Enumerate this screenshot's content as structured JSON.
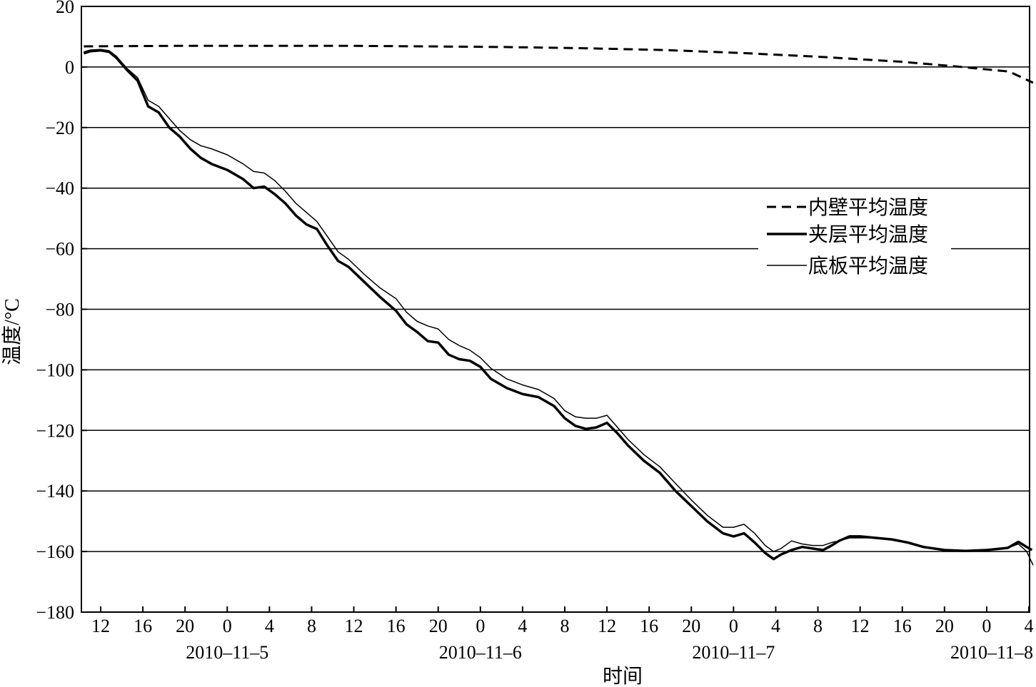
{
  "chart_data": {
    "type": "line",
    "title": "",
    "xlabel": "时间",
    "ylabel": "温度/°C",
    "ylim": [
      -180,
      20
    ],
    "yticks": [
      "20",
      "0",
      "−20",
      "−40",
      "−60",
      "−80",
      "−100",
      "−120",
      "−140",
      "−160",
      "−180"
    ],
    "ytick_values": [
      20,
      0,
      -20,
      -40,
      -60,
      -80,
      -100,
      -120,
      -140,
      -160,
      -180
    ],
    "xlim_hours": [
      10.4,
      81.8
    ],
    "x_unit": "hours from 2010-11-5 00:00",
    "xticks": [
      {
        "h": 12,
        "label": "12"
      },
      {
        "h": 16,
        "label": "16"
      },
      {
        "h": 20,
        "label": "20"
      },
      {
        "h": 24,
        "label": "0"
      },
      {
        "h": 28,
        "label": "4"
      },
      {
        "h": 32,
        "label": "8"
      },
      {
        "h": 36,
        "label": "12"
      },
      {
        "h": 40,
        "label": "16"
      },
      {
        "h": 44,
        "label": "20"
      },
      {
        "h": 48,
        "label": "0"
      },
      {
        "h": 52,
        "label": "4"
      },
      {
        "h": 56,
        "label": "8"
      },
      {
        "h": 60,
        "label": "12"
      },
      {
        "h": 64,
        "label": "16"
      },
      {
        "h": 68,
        "label": "20"
      },
      {
        "h": 72,
        "label": "0"
      },
      {
        "h": 76,
        "label": "4"
      },
      {
        "h": 80,
        "label": "8"
      }
    ],
    "date_labels": [
      {
        "h": 24,
        "label": "2010–11–5"
      },
      {
        "h": 48,
        "label": "2010–11–6"
      },
      {
        "h": 72,
        "label": "2010–11–7"
      },
      {
        "h": 80.5,
        "label": "2010–11–8"
      }
    ],
    "grid": "horizontal",
    "legend_position": "center-right",
    "colors": {
      "line": "#000000",
      "grid": "#000000",
      "background": "#ffffff"
    },
    "series": [
      {
        "name": "内壁平均温度",
        "style": "dashed",
        "width": 3,
        "points": [
          [
            10.4,
            6.8
          ],
          [
            14,
            6.9
          ],
          [
            18,
            7.0
          ],
          [
            24,
            7.0
          ],
          [
            30,
            7.0
          ],
          [
            36,
            6.8
          ],
          [
            42,
            6.6
          ],
          [
            48,
            6.2
          ],
          [
            54,
            5.6
          ],
          [
            60,
            4.6
          ],
          [
            66,
            3.3
          ],
          [
            72,
            1.7
          ],
          [
            76,
            0.2
          ],
          [
            80,
            -1.5
          ],
          [
            81.8,
            -5.2
          ]
        ]
      },
      {
        "name": "夹层平均温度",
        "style": "solid",
        "width": 3.5,
        "points": [
          [
            10.4,
            4.5
          ],
          [
            11.0,
            5.2
          ],
          [
            12.0,
            5.5
          ],
          [
            12.8,
            5.0
          ],
          [
            13.5,
            3.0
          ],
          [
            14.5,
            -1.0
          ],
          [
            15.5,
            -4.5
          ],
          [
            16.5,
            -13.0
          ],
          [
            17.5,
            -15.0
          ],
          [
            18.5,
            -20.0
          ],
          [
            19.5,
            -23.0
          ],
          [
            20.5,
            -27.0
          ],
          [
            21.5,
            -30.0
          ],
          [
            22.5,
            -32.0
          ],
          [
            24.0,
            -34.0
          ],
          [
            25.5,
            -37.0
          ],
          [
            26.5,
            -40.0
          ],
          [
            27.5,
            -39.5
          ],
          [
            28.5,
            -42.0
          ],
          [
            29.5,
            -45.0
          ],
          [
            30.5,
            -49.0
          ],
          [
            31.5,
            -52.0
          ],
          [
            32.5,
            -53.5
          ],
          [
            33.5,
            -59.0
          ],
          [
            34.5,
            -64.0
          ],
          [
            35.5,
            -66.0
          ],
          [
            37.0,
            -71.0
          ],
          [
            38.5,
            -76.0
          ],
          [
            40.0,
            -80.5
          ],
          [
            41.0,
            -85.0
          ],
          [
            42.0,
            -87.5
          ],
          [
            43.0,
            -90.5
          ],
          [
            44.0,
            -91.0
          ],
          [
            45.0,
            -95.0
          ],
          [
            46.0,
            -96.5
          ],
          [
            47.0,
            -97.0
          ],
          [
            48.0,
            -99.0
          ],
          [
            49.0,
            -103.0
          ],
          [
            50.5,
            -106.0
          ],
          [
            52.0,
            -108.0
          ],
          [
            53.5,
            -109.0
          ],
          [
            55.0,
            -112.0
          ],
          [
            56.0,
            -116.0
          ],
          [
            57.0,
            -118.5
          ],
          [
            58.0,
            -119.5
          ],
          [
            59.0,
            -119.0
          ],
          [
            60.0,
            -117.5
          ],
          [
            61.0,
            -121.0
          ],
          [
            62.0,
            -125.0
          ],
          [
            63.5,
            -130.0
          ],
          [
            65.0,
            -134.0
          ],
          [
            66.5,
            -140.0
          ],
          [
            68.0,
            -145.0
          ],
          [
            69.5,
            -150.0
          ],
          [
            71.0,
            -154.0
          ],
          [
            72.0,
            -155.0
          ],
          [
            73.0,
            -154.0
          ],
          [
            74.0,
            -157.0
          ],
          [
            75.0,
            -160.5
          ],
          [
            75.8,
            -162.5
          ],
          [
            76.5,
            -161.0
          ],
          [
            77.5,
            -159.5
          ],
          [
            78.5,
            -158.5
          ],
          [
            79.5,
            -159.0
          ],
          [
            80.5,
            -159.5
          ],
          [
            81.3,
            -158.0
          ],
          [
            82.0,
            -156.5
          ],
          [
            83.0,
            -155.0
          ],
          [
            84.0,
            -155.0
          ],
          [
            85.5,
            -155.5
          ],
          [
            87.0,
            -156.0
          ],
          [
            88.5,
            -157.0
          ],
          [
            90.0,
            -158.5
          ],
          [
            92.0,
            -159.5
          ],
          [
            94.0,
            -159.8
          ],
          [
            96.0,
            -159.5
          ],
          [
            98.0,
            -158.8
          ],
          [
            99.0,
            -156.8
          ],
          [
            99.8,
            -158.5
          ],
          [
            100.3,
            -159.5
          ]
        ]
      },
      {
        "name": "底板平均温度",
        "style": "solid",
        "width": 1.5,
        "points": [
          [
            10.4,
            5.0
          ],
          [
            11.0,
            5.6
          ],
          [
            12.0,
            5.8
          ],
          [
            12.8,
            5.4
          ],
          [
            13.5,
            3.5
          ],
          [
            14.5,
            -0.5
          ],
          [
            15.5,
            -3.5
          ],
          [
            16.5,
            -11.0
          ],
          [
            17.5,
            -13.0
          ],
          [
            18.5,
            -17.0
          ],
          [
            19.5,
            -21.0
          ],
          [
            20.5,
            -24.0
          ],
          [
            21.5,
            -26.0
          ],
          [
            22.5,
            -27.0
          ],
          [
            24.0,
            -29.0
          ],
          [
            25.5,
            -32.0
          ],
          [
            26.5,
            -34.5
          ],
          [
            27.5,
            -35.0
          ],
          [
            28.5,
            -37.5
          ],
          [
            29.5,
            -41.0
          ],
          [
            30.5,
            -45.0
          ],
          [
            31.5,
            -48.0
          ],
          [
            32.5,
            -51.0
          ],
          [
            33.5,
            -56.0
          ],
          [
            34.5,
            -61.0
          ],
          [
            35.5,
            -63.5
          ],
          [
            37.0,
            -68.5
          ],
          [
            38.5,
            -73.0
          ],
          [
            40.0,
            -76.5
          ],
          [
            41.0,
            -81.0
          ],
          [
            42.0,
            -84.0
          ],
          [
            43.0,
            -85.5
          ],
          [
            44.0,
            -86.5
          ],
          [
            45.0,
            -90.0
          ],
          [
            46.0,
            -92.0
          ],
          [
            47.0,
            -93.5
          ],
          [
            48.0,
            -96.0
          ],
          [
            49.0,
            -99.5
          ],
          [
            50.5,
            -103.0
          ],
          [
            52.0,
            -105.0
          ],
          [
            53.5,
            -106.5
          ],
          [
            55.0,
            -109.5
          ],
          [
            56.0,
            -113.5
          ],
          [
            57.0,
            -115.5
          ],
          [
            58.0,
            -116.0
          ],
          [
            59.0,
            -116.0
          ],
          [
            60.0,
            -115.0
          ],
          [
            61.0,
            -119.0
          ],
          [
            62.0,
            -123.0
          ],
          [
            63.5,
            -128.0
          ],
          [
            65.0,
            -132.0
          ],
          [
            66.5,
            -137.5
          ],
          [
            68.0,
            -143.0
          ],
          [
            69.5,
            -148.0
          ],
          [
            71.0,
            -152.0
          ],
          [
            72.0,
            -152.0
          ],
          [
            73.0,
            -151.0
          ],
          [
            74.0,
            -154.0
          ],
          [
            75.0,
            -158.0
          ],
          [
            75.8,
            -160.0
          ],
          [
            76.5,
            -159.0
          ],
          [
            77.5,
            -156.5
          ],
          [
            78.5,
            -157.5
          ],
          [
            79.5,
            -158.0
          ],
          [
            80.5,
            -158.0
          ],
          [
            81.3,
            -157.0
          ],
          [
            82.0,
            -156.5
          ],
          [
            83.0,
            -155.5
          ],
          [
            84.0,
            -155.5
          ],
          [
            85.5,
            -155.5
          ],
          [
            87.0,
            -156.0
          ],
          [
            88.5,
            -157.0
          ],
          [
            90.0,
            -158.5
          ],
          [
            92.0,
            -159.5
          ],
          [
            94.0,
            -159.8
          ],
          [
            96.0,
            -159.5
          ],
          [
            98.0,
            -158.8
          ],
          [
            99.0,
            -157.5
          ],
          [
            99.8,
            -160.0
          ],
          [
            100.4,
            -164.5
          ]
        ]
      }
    ]
  }
}
